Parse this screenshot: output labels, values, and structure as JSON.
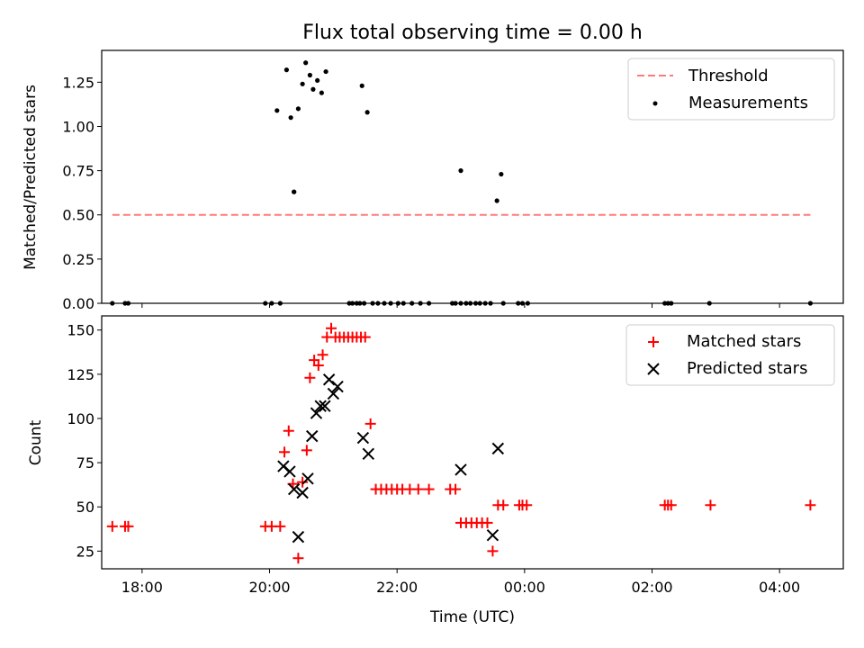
{
  "figure": {
    "title": "Flux total observing time = 0.00 h"
  },
  "chart_data": [
    {
      "type": "scatter",
      "xlabel": "",
      "ylabel": "Matched/Predicted stars",
      "xlim": [
        "17:22",
        "05:00"
      ],
      "ylim": [
        0,
        1.43
      ],
      "yticks": [
        "0.00",
        "0.25",
        "0.50",
        "0.75",
        "1.00",
        "1.25"
      ],
      "grid": false,
      "legend_position": "top-right",
      "series": [
        {
          "name": "Threshold",
          "kind": "line",
          "style": "dashed",
          "color": "#ff7b7b",
          "x": [
            "17:32",
            "04:29"
          ],
          "y": [
            0.5,
            0.5
          ]
        },
        {
          "name": "Measurements",
          "kind": "scatter",
          "color": "#000000",
          "x": [
            "20:07",
            "20:16",
            "20:20",
            "20:23",
            "20:27",
            "20:31",
            "20:34",
            "20:38",
            "20:41",
            "20:45",
            "20:49",
            "20:53",
            "21:27",
            "20:23",
            "21:32",
            "23:00",
            "23:34",
            "23:38",
            "17:32",
            "17:44",
            "17:47",
            "19:56",
            "20:02",
            "20:10",
            "21:15",
            "21:18",
            "21:22",
            "21:25",
            "21:29",
            "21:37",
            "21:42",
            "21:48",
            "21:54",
            "22:01",
            "22:06",
            "22:14",
            "22:22",
            "22:30",
            "22:52",
            "22:55",
            "23:00",
            "23:05",
            "23:09",
            "23:14",
            "23:18",
            "23:23",
            "23:28",
            "23:40",
            "23:54",
            "23:58",
            "00:03",
            "02:12",
            "02:15",
            "02:18",
            "02:54",
            "04:29"
          ],
          "y": [
            1.09,
            1.32,
            1.05,
            0.63,
            1.1,
            1.24,
            1.36,
            1.29,
            1.21,
            1.26,
            1.19,
            1.31,
            1.23,
            0.63,
            1.08,
            0.75,
            0.58,
            0.73,
            0,
            0,
            0,
            0,
            0,
            0,
            0,
            0,
            0,
            0,
            0,
            0,
            0,
            0,
            0,
            0,
            0,
            0,
            0,
            0,
            0,
            0,
            0,
            0,
            0,
            0,
            0,
            0,
            0,
            0,
            0,
            0,
            0,
            0,
            0,
            0,
            0,
            0
          ]
        }
      ]
    },
    {
      "type": "scatter",
      "xlabel": "Time (UTC)",
      "ylabel": "Count",
      "xlim": [
        "17:22",
        "05:00"
      ],
      "ylim": [
        15,
        158
      ],
      "xticks": [
        "18:00",
        "20:00",
        "22:00",
        "00:00",
        "02:00",
        "04:00"
      ],
      "yticks": [
        "25",
        "50",
        "75",
        "100",
        "125",
        "150"
      ],
      "grid": false,
      "legend_position": "top-right",
      "series": [
        {
          "name": "Matched stars",
          "kind": "plus",
          "color": "#ff0000",
          "x": [
            "17:32",
            "17:44",
            "17:47",
            "19:56",
            "20:02",
            "20:10",
            "20:14",
            "20:18",
            "20:22",
            "20:27",
            "20:31",
            "20:35",
            "20:38",
            "20:42",
            "20:46",
            "20:50",
            "20:54",
            "20:58",
            "21:02",
            "21:06",
            "21:10",
            "21:14",
            "21:18",
            "21:22",
            "21:26",
            "21:30",
            "21:35",
            "21:40",
            "21:45",
            "21:50",
            "21:55",
            "22:00",
            "22:05",
            "22:12",
            "22:20",
            "22:30",
            "22:50",
            "22:55",
            "23:00",
            "23:05",
            "23:10",
            "23:15",
            "23:20",
            "23:25",
            "23:30",
            "23:35",
            "23:40",
            "23:55",
            "23:58",
            "00:02",
            "02:12",
            "02:15",
            "02:18",
            "02:55",
            "04:29"
          ],
          "y": [
            39,
            39,
            39,
            39,
            39,
            39,
            81,
            93,
            63,
            21,
            64,
            82,
            123,
            133,
            130,
            136,
            146,
            151,
            146,
            146,
            146,
            146,
            146,
            146,
            146,
            146,
            97,
            60,
            60,
            60,
            60,
            60,
            60,
            60,
            60,
            60,
            60,
            60,
            41,
            41,
            41,
            41,
            41,
            41,
            25,
            51,
            51,
            51,
            51,
            51,
            51,
            51,
            51,
            51,
            51
          ]
        },
        {
          "name": "Predicted stars",
          "kind": "x",
          "color": "#000000",
          "x": [
            "20:13",
            "20:19",
            "20:23",
            "20:27",
            "20:31",
            "20:36",
            "20:40",
            "20:44",
            "20:48",
            "20:52",
            "20:56",
            "21:00",
            "21:04",
            "21:28",
            "21:33",
            "23:00",
            "23:30",
            "23:35"
          ],
          "y": [
            73,
            70,
            60,
            33,
            58,
            66,
            90,
            103,
            107,
            107,
            122,
            114,
            118,
            89,
            80,
            71,
            34,
            83
          ]
        }
      ]
    }
  ]
}
